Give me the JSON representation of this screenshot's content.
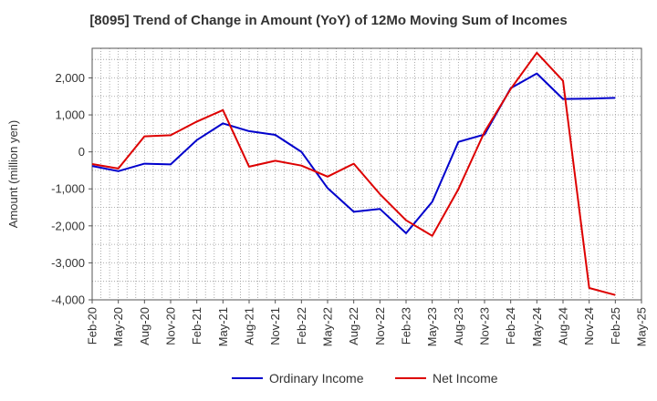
{
  "chart_data": {
    "type": "line",
    "title": "[8095]  Trend of Change in Amount (YoY) of 12Mo Moving Sum of Incomes",
    "xlabel": "",
    "ylabel": "Amount (million yen)",
    "ylim": [
      -4000,
      2800
    ],
    "yticks": [
      2000,
      1000,
      0,
      -1000,
      -2000,
      -3000,
      -4000
    ],
    "ytick_labels": [
      "2,000",
      "1,000",
      "0",
      "-1,000",
      "-2,000",
      "-3,000",
      "-4,000"
    ],
    "x_tick_labels": [
      "Feb-20",
      "May-20",
      "Aug-20",
      "Nov-20",
      "Feb-21",
      "May-21",
      "Aug-21",
      "Nov-21",
      "Feb-22",
      "May-22",
      "Aug-22",
      "Nov-22",
      "Feb-23",
      "May-23",
      "Aug-23",
      "Nov-23",
      "Feb-24",
      "May-24",
      "Aug-24",
      "Nov-24",
      "Feb-25",
      "May-25"
    ],
    "x": [
      "Feb-20",
      "May-20",
      "Aug-20",
      "Nov-20",
      "Feb-21",
      "May-21",
      "Aug-21",
      "Nov-21",
      "Feb-22",
      "May-22",
      "Aug-22",
      "Nov-22",
      "Feb-23",
      "May-23",
      "Aug-23",
      "Nov-23",
      "Feb-24",
      "May-24",
      "Aug-24",
      "Nov-24",
      "Feb-25"
    ],
    "grid": true,
    "legend_position": "bottom",
    "series": [
      {
        "name": "Ordinary Income",
        "color": "#0000cc",
        "values": [
          -380,
          -520,
          -320,
          -340,
          320,
          770,
          560,
          460,
          0,
          -980,
          -1620,
          -1540,
          -2200,
          -1350,
          270,
          470,
          1720,
          2120,
          1430,
          1440,
          1460
        ]
      },
      {
        "name": "Net Income",
        "color": "#dd0000",
        "values": [
          -330,
          -450,
          420,
          450,
          820,
          1130,
          -400,
          -240,
          -370,
          -670,
          -320,
          -1140,
          -1850,
          -2270,
          -1010,
          540,
          1700,
          2680,
          1920,
          -3680,
          -3870
        ]
      }
    ]
  }
}
